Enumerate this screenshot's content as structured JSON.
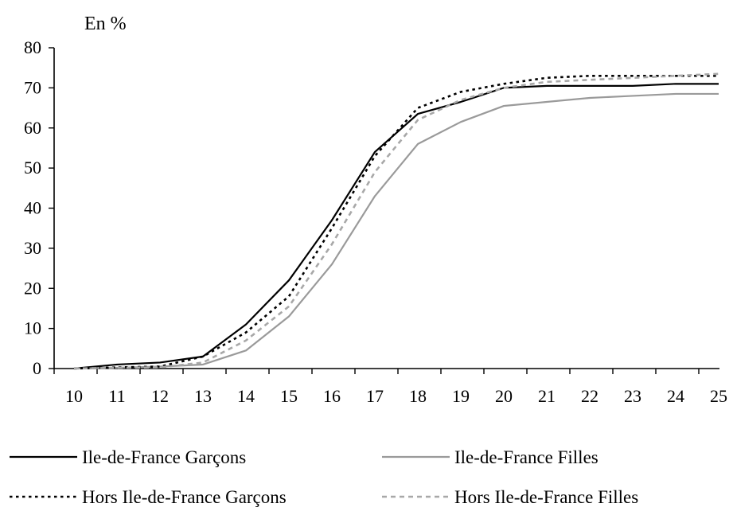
{
  "chart_data": {
    "type": "line",
    "ylabel": "En %",
    "xlabel": "",
    "x": [
      10,
      11,
      12,
      13,
      14,
      15,
      16,
      17,
      18,
      19,
      20,
      21,
      22,
      23,
      24,
      25
    ],
    "xlim": [
      10,
      25
    ],
    "ylim": [
      0,
      80
    ],
    "yticks": [
      0,
      10,
      20,
      30,
      40,
      50,
      60,
      70,
      80
    ],
    "grid": false,
    "legend_position": "bottom",
    "series": [
      {
        "name": "Ile-de-France Garçons",
        "color": "#000000",
        "style": "solid",
        "values": [
          0,
          1,
          1.5,
          3,
          11,
          22,
          37,
          54,
          63.5,
          66.5,
          70,
          70.5,
          70.5,
          70.5,
          71,
          71
        ]
      },
      {
        "name": "Ile-de-France Filles",
        "color": "#9a9a9a",
        "style": "solid",
        "values": [
          0,
          0.2,
          0.5,
          1,
          4.5,
          13,
          26,
          43,
          56,
          61.5,
          65.5,
          66.5,
          67.5,
          68,
          68.5,
          68.5
        ]
      },
      {
        "name": "Hors Ile-de-France Garçons",
        "color": "#000000",
        "style": "dotted",
        "values": [
          0,
          0.3,
          0.5,
          3,
          9,
          18,
          35,
          53,
          65,
          69,
          71,
          72.5,
          73,
          73,
          73,
          73
        ]
      },
      {
        "name": "Hors Ile-de-France Filles",
        "color": "#a8a8a8",
        "style": "dashed",
        "values": [
          0,
          0.2,
          0.3,
          1.5,
          7,
          15.5,
          31,
          49,
          62,
          67,
          70,
          71.5,
          72,
          72.5,
          73,
          73.5
        ]
      }
    ]
  }
}
